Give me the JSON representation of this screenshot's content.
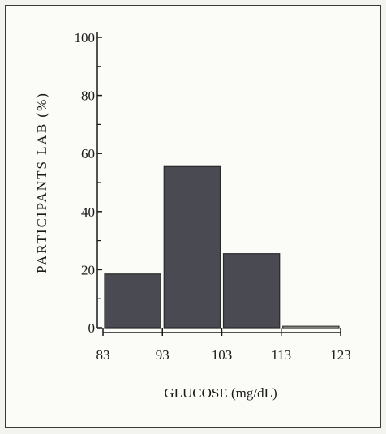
{
  "chart_data": {
    "type": "bar",
    "title": "",
    "xlabel": "GLUCOSE (mg/dL)",
    "ylabel": "PARTICIPANTS LAB (%)",
    "x_ticks": [
      "83",
      "93",
      "103",
      "113",
      "123"
    ],
    "y_ticks": [
      "0",
      "20",
      "40",
      "60",
      "80",
      "100"
    ],
    "bins": [
      {
        "from": 83,
        "to": 93,
        "value": 18.5
      },
      {
        "from": 93,
        "to": 103,
        "value": 55.5
      },
      {
        "from": 103,
        "to": 113,
        "value": 25.5
      },
      {
        "from": 113,
        "to": 123,
        "value": 0.5
      }
    ],
    "xlim": [
      83,
      123
    ],
    "ylim": [
      0,
      100
    ],
    "grid": false,
    "bar_color": "#4a4a52"
  }
}
